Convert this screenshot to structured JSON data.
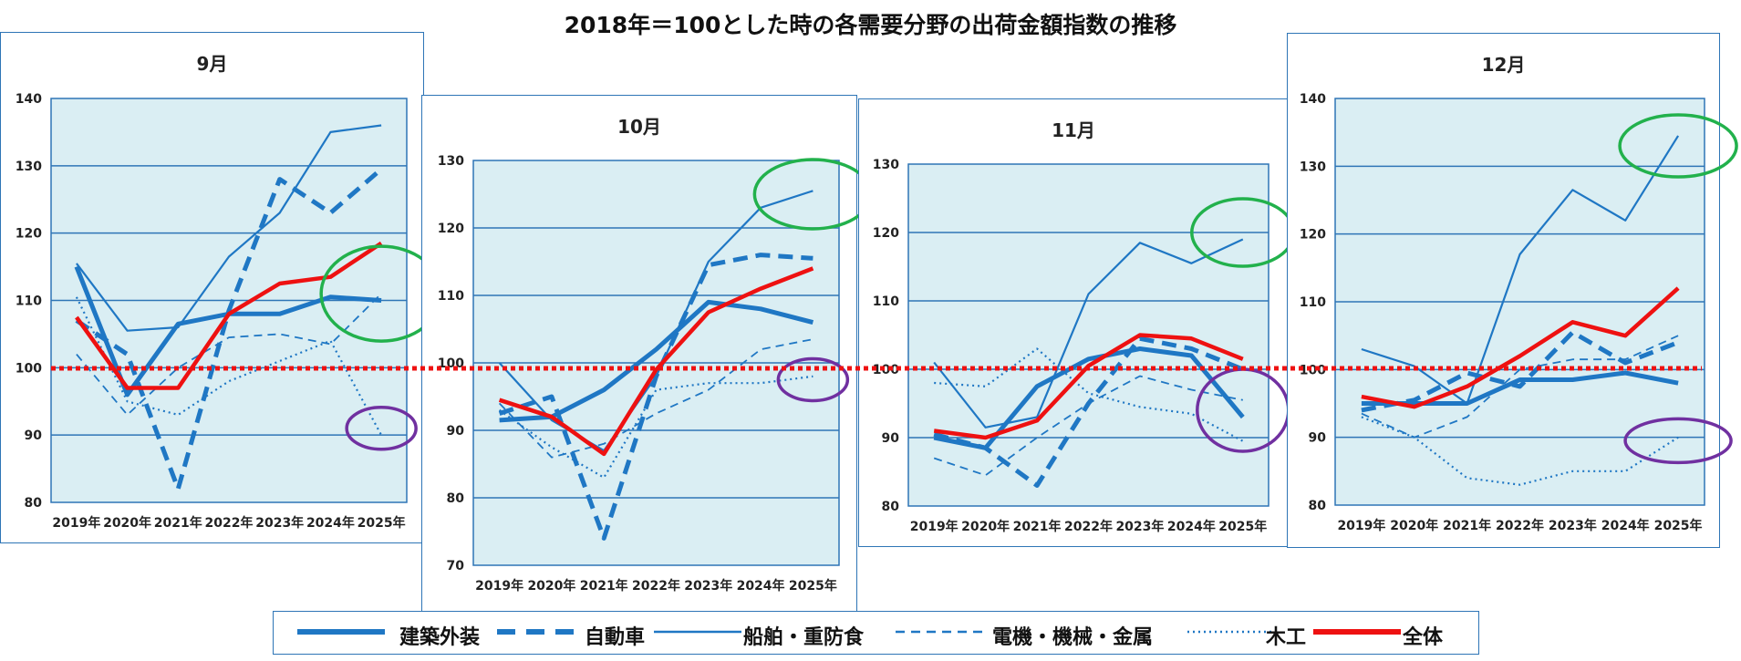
{
  "title": "2018年＝100とした時の各需要分野の出荷金額指数の推移",
  "colors": {
    "series": "#1f77c4",
    "total": "#ee1111",
    "green": "#22b14c",
    "purple": "#7030a0",
    "plot_bg": "#daeef3",
    "grid": "#2e75b6",
    "ref": "#ee1111"
  },
  "legend": [
    {
      "name": "建築外装",
      "style": "thick"
    },
    {
      "name": "自動車",
      "style": "thick-dash"
    },
    {
      "name": "船舶・重防食",
      "style": "thin"
    },
    {
      "name": "電機・機械・金属",
      "style": "thin-dash"
    },
    {
      "name": "木工",
      "style": "dotted"
    },
    {
      "name": "全体",
      "style": "total"
    }
  ],
  "chart_data": [
    {
      "type": "line",
      "title": "9月",
      "categories": [
        "2019年",
        "2020年",
        "2021年",
        "2022年",
        "2023年",
        "2024年",
        "2025年"
      ],
      "ylim": [
        80,
        140
      ],
      "yticks": [
        "80",
        "90",
        "100",
        "110",
        "120",
        "130",
        "140"
      ],
      "series": [
        {
          "name": "建築外装",
          "values": [
            115,
            96,
            106.5,
            108,
            108,
            110.5,
            110
          ]
        },
        {
          "name": "自動車",
          "values": [
            107,
            102,
            82,
            108.5,
            128,
            123,
            129.5
          ]
        },
        {
          "name": "船舶・重防食",
          "values": [
            115.5,
            105.5,
            106,
            116.5,
            123,
            135,
            136
          ]
        },
        {
          "name": "電機・機械・金属",
          "values": [
            102,
            93,
            100,
            104.5,
            105,
            103.5,
            111
          ]
        },
        {
          "name": "木工",
          "values": [
            110.5,
            95,
            93,
            98,
            101,
            104,
            90
          ]
        },
        {
          "name": "全体",
          "values": [
            107.5,
            97,
            97,
            108,
            112.5,
            113.5,
            118.5
          ]
        }
      ],
      "highlights": [
        {
          "color": "green",
          "x": "2025年",
          "y": 111
        },
        {
          "color": "purple",
          "x": "2025年",
          "y": 91
        }
      ]
    },
    {
      "type": "line",
      "title": "10月",
      "categories": [
        "2019年",
        "2020年",
        "2021年",
        "2022年",
        "2023年",
        "2024年",
        "2025年"
      ],
      "ylim": [
        70,
        130
      ],
      "yticks": [
        "70",
        "80",
        "90",
        "100",
        "110",
        "120",
        "130"
      ],
      "series": [
        {
          "name": "建築外装",
          "values": [
            91.5,
            92,
            96,
            102,
            109,
            108,
            106
          ]
        },
        {
          "name": "自動車",
          "values": [
            92.5,
            95,
            74,
            98,
            114.5,
            116,
            115.5
          ]
        },
        {
          "name": "船舶・重防食",
          "values": [
            100,
            91.5,
            87,
            98,
            115,
            123,
            125.5
          ]
        },
        {
          "name": "電機・機械・金属",
          "values": [
            94,
            86,
            88,
            92.5,
            96,
            102,
            103.5
          ]
        },
        {
          "name": "木工",
          "values": [
            93,
            87.5,
            83,
            96,
            97,
            97,
            98
          ]
        },
        {
          "name": "全体",
          "values": [
            94.5,
            92,
            86.5,
            99,
            107.5,
            111,
            114
          ]
        }
      ],
      "highlights": [
        {
          "color": "green",
          "x": "2025年",
          "y": 125
        },
        {
          "color": "purple",
          "x": "2025年",
          "y": 97.5
        }
      ]
    },
    {
      "type": "line",
      "title": "11月",
      "categories": [
        "2019年",
        "2020年",
        "2021年",
        "2022年",
        "2023年",
        "2024年",
        "2025年"
      ],
      "ylim": [
        80,
        130
      ],
      "yticks": [
        "80",
        "90",
        "100",
        "110",
        "120",
        "130"
      ],
      "series": [
        {
          "name": "建築外装",
          "values": [
            90,
            88.5,
            97.5,
            101.5,
            103,
            102,
            93
          ]
        },
        {
          "name": "自動車",
          "values": [
            90.5,
            88.5,
            83,
            95,
            104.5,
            103,
            100
          ]
        },
        {
          "name": "船舶・重防食",
          "values": [
            101,
            91.5,
            93,
            111,
            118.5,
            115.5,
            119
          ]
        },
        {
          "name": "電機・機械・金属",
          "values": [
            87,
            84.5,
            90,
            95,
            99,
            97,
            95.5
          ]
        },
        {
          "name": "木工",
          "values": [
            98,
            97.5,
            103,
            96.5,
            94.5,
            93.5,
            89.5
          ]
        },
        {
          "name": "全体",
          "values": [
            91,
            90,
            92.5,
            100.5,
            105,
            104.5,
            101.5
          ]
        }
      ],
      "highlights": [
        {
          "color": "green",
          "x": "2025年",
          "y": 120
        },
        {
          "color": "purple",
          "x": "2025年",
          "y": 94
        }
      ]
    },
    {
      "type": "line",
      "title": "12月",
      "categories": [
        "2019年",
        "2020年",
        "2021年",
        "2022年",
        "2023年",
        "2024年",
        "2025年"
      ],
      "ylim": [
        80,
        140
      ],
      "yticks": [
        "80",
        "90",
        "100",
        "110",
        "120",
        "130",
        "140"
      ],
      "series": [
        {
          "name": "建築外装",
          "values": [
            95,
            95,
            95,
            98.5,
            98.5,
            99.5,
            98
          ]
        },
        {
          "name": "自動車",
          "values": [
            94,
            95.5,
            99.5,
            97.5,
            105.5,
            101,
            104
          ]
        },
        {
          "name": "船舶・重防食",
          "values": [
            103,
            100.5,
            95,
            117,
            126.5,
            122,
            134.5
          ]
        },
        {
          "name": "電機・機械・金属",
          "values": [
            93.5,
            90,
            93,
            100,
            101.5,
            101.5,
            105
          ]
        },
        {
          "name": "木工",
          "values": [
            93,
            90,
            84,
            83,
            85,
            85,
            90
          ]
        },
        {
          "name": "全体",
          "values": [
            96,
            94.5,
            97.5,
            102,
            107,
            105,
            112
          ]
        }
      ],
      "highlights": [
        {
          "color": "green",
          "x": "2025年",
          "y": 133
        },
        {
          "color": "purple",
          "x": "2025年",
          "y": 89.5
        }
      ]
    }
  ]
}
